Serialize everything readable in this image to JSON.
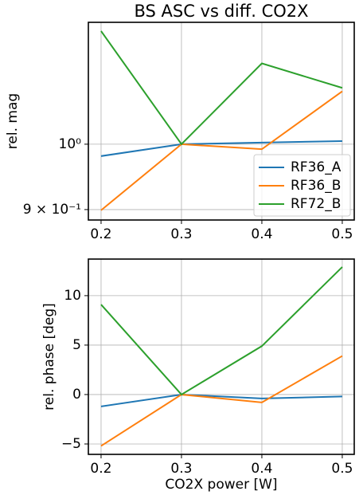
{
  "chart_data": [
    {
      "type": "line",
      "title": "BS ASC vs diff. CO2X",
      "ylabel": "rel. mag",
      "x": [
        0.2,
        0.3,
        0.4,
        0.5
      ],
      "xlim": [
        0.1842,
        0.5149
      ],
      "xticks": [
        0.2,
        0.3,
        0.4,
        0.5
      ],
      "ylim": [
        0.885,
        1.217
      ],
      "yscale": "log",
      "yticks": [
        {
          "value": 0.9,
          "label": "9 × 10⁻¹"
        },
        {
          "value": 1,
          "label": "10⁰"
        }
      ],
      "grid": true,
      "legend": "lower right",
      "series": [
        {
          "name": "RF36_A",
          "color": "#1f77b4",
          "values": [
            0.981,
            1.0,
            1.0026,
            1.005
          ]
        },
        {
          "name": "RF36_B",
          "color": "#ff7f0e",
          "values": [
            0.899,
            1.0,
            0.992,
            1.089
          ]
        },
        {
          "name": "RF72_B",
          "color": "#2ca02c",
          "values": [
            1.2,
            1.0,
            1.139,
            1.095
          ]
        }
      ]
    },
    {
      "type": "line",
      "ylabel": "rel. phase [deg]",
      "xlabel": "CO2X power [W]",
      "x": [
        0.2,
        0.3,
        0.4,
        0.5
      ],
      "xlim": [
        0.1842,
        0.5149
      ],
      "xticks": [
        0.2,
        0.3,
        0.4,
        0.5
      ],
      "ylim": [
        -6.05,
        13.7
      ],
      "yticks": [
        {
          "value": -5,
          "label": "−5"
        },
        0,
        5,
        10
      ],
      "grid": true,
      "series": [
        {
          "color": "#1f77b4",
          "values": [
            -1.2,
            0,
            -0.4,
            -0.2
          ]
        },
        {
          "color": "#ff7f0e",
          "values": [
            -5.2,
            0,
            -0.8,
            3.9
          ]
        },
        {
          "color": "#2ca02c",
          "values": [
            9.1,
            0,
            4.9,
            12.9
          ]
        }
      ]
    }
  ]
}
